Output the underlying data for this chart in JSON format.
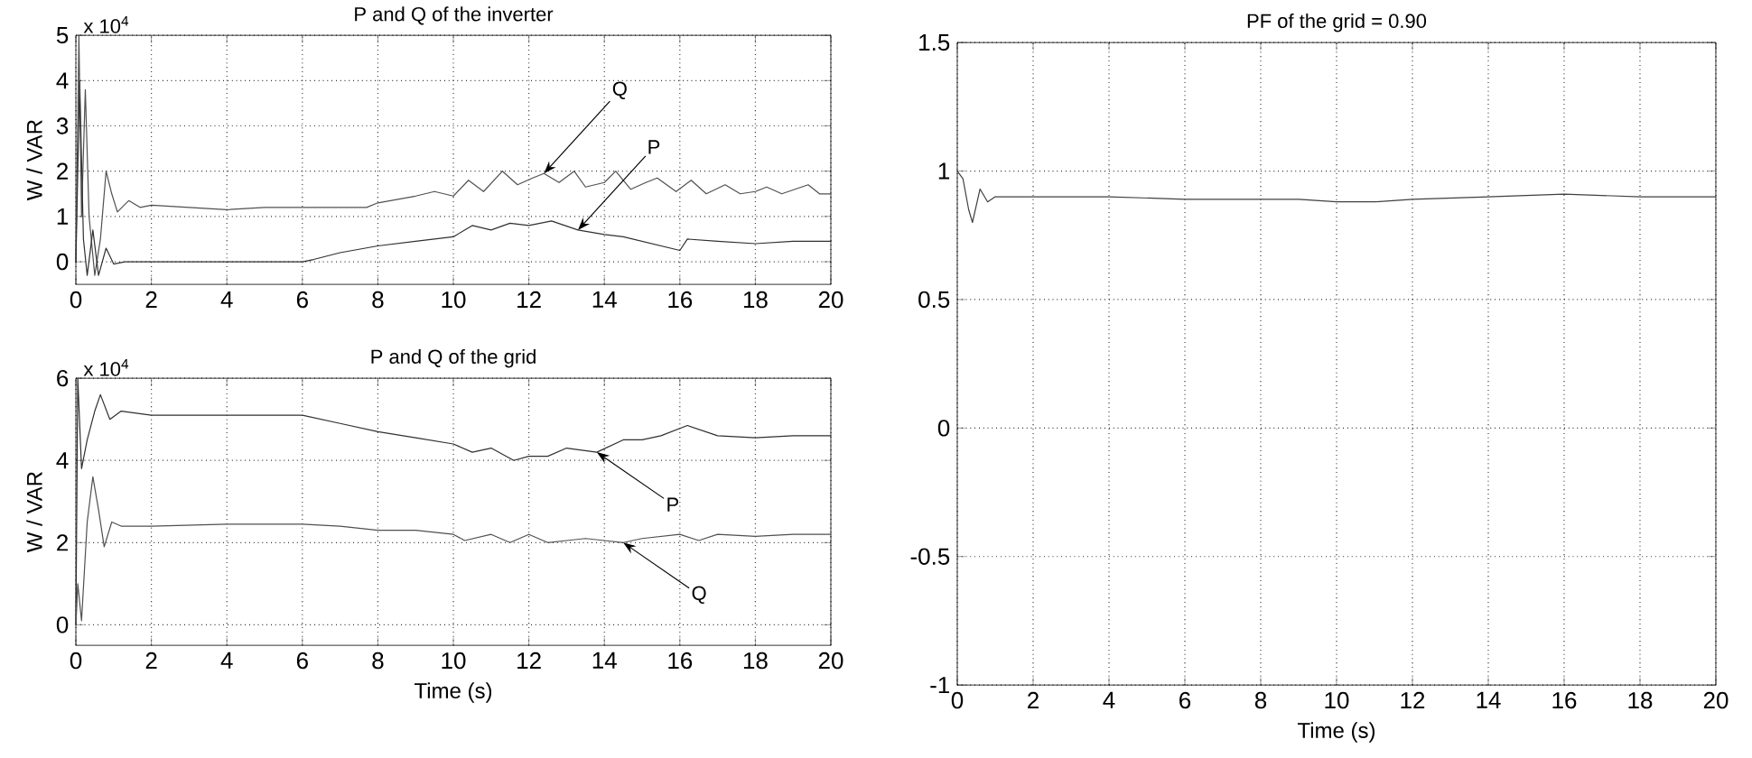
{
  "chart_data": [
    {
      "type": "line",
      "title": "P and Q of the inverter",
      "ylabel": "W / VAR",
      "xlim": [
        0,
        20
      ],
      "ylim": [
        -0.5,
        5
      ],
      "xticks": [
        0,
        2,
        4,
        6,
        8,
        10,
        12,
        14,
        16,
        18,
        20
      ],
      "yticks": [
        0,
        1,
        2,
        3,
        4,
        5
      ],
      "grid": true,
      "annotations": [
        "x 10$^{4}$",
        {
          "text": "Q",
          "x": 12.4,
          "y": 1.95
        },
        {
          "text": "P",
          "x": 13.3,
          "y": 0.7
        }
      ],
      "series": [
        {
          "color": "#505050",
          "x": [
            0,
            0.08,
            0.15,
            0.25,
            0.35,
            0.5,
            0.65,
            0.8,
            0.95,
            1.1,
            1.4,
            1.7,
            2,
            3,
            4,
            5,
            6,
            7,
            7.7,
            8,
            9,
            9.5,
            10,
            10.4,
            10.8,
            11.3,
            11.7,
            12.1,
            12.4,
            12.8,
            13.2,
            13.5,
            14,
            14.3,
            14.7,
            15.1,
            15.4,
            15.9,
            16.3,
            16.7,
            17.2,
            17.6,
            18,
            18.3,
            18.7,
            19.4,
            19.7,
            20
          ],
          "values": [
            0,
            5,
            1,
            3.8,
            1,
            -0.3,
            0.5,
            2.0,
            1.5,
            1.1,
            1.35,
            1.2,
            1.25,
            1.2,
            1.15,
            1.2,
            1.2,
            1.2,
            1.2,
            1.3,
            1.45,
            1.55,
            1.45,
            1.8,
            1.55,
            2.0,
            1.7,
            1.85,
            1.95,
            1.75,
            2.0,
            1.65,
            1.75,
            2.0,
            1.6,
            1.75,
            1.85,
            1.55,
            1.8,
            1.5,
            1.7,
            1.5,
            1.55,
            1.65,
            1.5,
            1.7,
            1.5,
            1.5
          ]
        },
        {
          "color": "#303030",
          "x": [
            0,
            0.1,
            0.2,
            0.3,
            0.45,
            0.6,
            0.8,
            1.0,
            1.3,
            2,
            6,
            6.3,
            7,
            8,
            9,
            10,
            10.5,
            11,
            11.5,
            12,
            12.6,
            13.3,
            14,
            14.5,
            15,
            15.5,
            16,
            16.2,
            17,
            18,
            19,
            20
          ],
          "values": [
            0,
            4,
            0.5,
            -0.3,
            0.7,
            -0.3,
            0.3,
            -0.05,
            0,
            0,
            0,
            0.05,
            0.2,
            0.35,
            0.45,
            0.55,
            0.8,
            0.7,
            0.85,
            0.8,
            0.9,
            0.7,
            0.6,
            0.55,
            0.45,
            0.35,
            0.25,
            0.5,
            0.45,
            0.4,
            0.45,
            0.45
          ]
        }
      ]
    },
    {
      "type": "line",
      "title": "P and Q of the grid",
      "xlabel": "Time (s)",
      "ylabel": "W / VAR",
      "xlim": [
        0,
        20
      ],
      "ylim": [
        -0.5,
        6
      ],
      "xticks": [
        0,
        2,
        4,
        6,
        8,
        10,
        12,
        14,
        16,
        18,
        20
      ],
      "yticks": [
        0,
        2,
        4,
        6
      ],
      "grid": true,
      "annotations": [
        "x 10$^{4}$",
        {
          "text": "P",
          "x": 13.8,
          "y": 4.2
        },
        {
          "text": "Q",
          "x": 14.5,
          "y": 2.0
        }
      ],
      "series": [
        {
          "color": "#303030",
          "x": [
            0,
            0.05,
            0.15,
            0.3,
            0.5,
            0.65,
            0.9,
            1.2,
            2,
            4,
            6,
            7,
            8,
            9,
            10,
            10.5,
            11,
            11.6,
            12,
            12.5,
            13,
            13.8,
            14.5,
            15,
            15.5,
            16.2,
            17,
            18,
            19,
            20
          ],
          "values": [
            0,
            6,
            3.8,
            4.5,
            5.2,
            5.6,
            5.0,
            5.2,
            5.1,
            5.1,
            5.1,
            4.9,
            4.7,
            4.55,
            4.4,
            4.2,
            4.3,
            4.0,
            4.1,
            4.1,
            4.3,
            4.2,
            4.5,
            4.5,
            4.6,
            4.85,
            4.6,
            4.55,
            4.6,
            4.6
          ]
        },
        {
          "color": "#505050",
          "x": [
            0,
            0.05,
            0.15,
            0.3,
            0.45,
            0.6,
            0.75,
            0.95,
            1.2,
            2,
            4,
            6,
            7,
            8,
            9,
            10,
            10.3,
            11,
            11.5,
            12,
            12.5,
            13,
            13.5,
            14,
            14.5,
            15,
            15.5,
            16,
            16.5,
            17,
            18,
            19,
            20
          ],
          "values": [
            0,
            1,
            0.1,
            2.5,
            3.6,
            2.8,
            1.9,
            2.5,
            2.4,
            2.4,
            2.45,
            2.45,
            2.4,
            2.3,
            2.3,
            2.2,
            2.05,
            2.2,
            2.0,
            2.2,
            2.0,
            2.05,
            2.1,
            2.05,
            2.0,
            2.1,
            2.15,
            2.2,
            2.05,
            2.2,
            2.15,
            2.2,
            2.2
          ]
        }
      ]
    },
    {
      "type": "line",
      "title": "PF of the grid = 0.90",
      "xlabel": "Time (s)",
      "xlim": [
        0,
        20
      ],
      "ylim": [
        -1,
        1.5
      ],
      "xticks": [
        0,
        2,
        4,
        6,
        8,
        10,
        12,
        14,
        16,
        18,
        20
      ],
      "yticks": [
        -1,
        -0.5,
        0,
        0.5,
        1,
        1.5
      ],
      "grid": true,
      "series": [
        {
          "color": "#404040",
          "x": [
            0,
            0.15,
            0.3,
            0.4,
            0.6,
            0.8,
            1,
            2,
            4,
            6,
            8,
            9,
            10,
            11,
            12,
            14,
            16,
            18,
            20
          ],
          "values": [
            1,
            0.97,
            0.85,
            0.8,
            0.93,
            0.88,
            0.9,
            0.9,
            0.9,
            0.89,
            0.89,
            0.89,
            0.88,
            0.88,
            0.89,
            0.9,
            0.91,
            0.9,
            0.9
          ]
        }
      ]
    }
  ]
}
